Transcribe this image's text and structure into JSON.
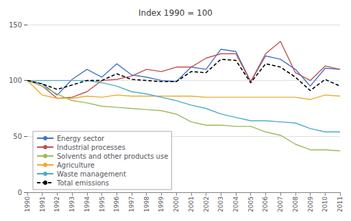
{
  "chart_data": {
    "type": "line",
    "title": "Index 1990 = 100",
    "x": [
      1990,
      1991,
      1992,
      1993,
      1994,
      1995,
      1996,
      1997,
      1998,
      1999,
      2000,
      2001,
      2002,
      2003,
      2004,
      2005,
      2006,
      2007,
      2008,
      2009,
      2010,
      2011
    ],
    "series": [
      {
        "name": "Energy sector",
        "color": "#4472c4",
        "line_style": "solid",
        "values": [
          100,
          97,
          87,
          101,
          110,
          103,
          115,
          105,
          103,
          100,
          99,
          112,
          110,
          128,
          126,
          99,
          122,
          119,
          110,
          95,
          111,
          110
        ]
      },
      {
        "name": "Industrial processes",
        "color": "#c0504d",
        "line_style": "solid",
        "values": [
          100,
          95,
          84,
          85,
          90,
          100,
          101,
          104,
          110,
          108,
          112,
          112,
          120,
          124,
          124,
          99,
          124,
          135,
          107,
          100,
          113,
          110
        ]
      },
      {
        "name": "Solvents and other products use",
        "color": "#9bbb59",
        "line_style": "solid",
        "values": [
          100,
          95,
          88,
          82,
          80,
          77,
          76,
          75,
          74,
          73,
          70,
          63,
          60,
          60,
          59,
          59,
          54,
          51,
          43,
          38,
          38,
          37
        ]
      },
      {
        "name": "Agriculture",
        "color": "#f0a830",
        "line_style": "solid",
        "values": [
          100,
          87,
          84,
          84,
          86,
          85,
          87,
          86,
          86,
          86,
          86,
          86,
          85,
          85,
          85,
          85,
          85,
          85,
          85,
          83,
          87,
          86
        ]
      },
      {
        "name": "Waste management",
        "color": "#4bacc6",
        "line_style": "solid",
        "values": [
          100,
          100,
          100,
          100,
          100,
          98,
          95,
          90,
          88,
          85,
          82,
          78,
          75,
          70,
          67,
          64,
          64,
          63,
          62,
          57,
          54,
          54
        ]
      },
      {
        "name": "Total emissions",
        "color": "#000000",
        "line_style": "dashed",
        "values": [
          100,
          97,
          92,
          96,
          100,
          100,
          106,
          101,
          100,
          99,
          99,
          108,
          107,
          119,
          118,
          98,
          115,
          112,
          103,
          91,
          101,
          95
        ]
      }
    ],
    "xlim": [
      1990,
      2011
    ],
    "xticks": [
      1990,
      1991,
      1992,
      1993,
      1994,
      1995,
      1996,
      1997,
      1998,
      1999,
      2000,
      2001,
      2002,
      2003,
      2004,
      2005,
      2006,
      2007,
      2008,
      2009,
      2010,
      2011
    ],
    "ylim": [
      0,
      150
    ],
    "yticks": [
      0,
      50,
      100,
      150
    ],
    "grid": true,
    "legend": "lower left"
  }
}
